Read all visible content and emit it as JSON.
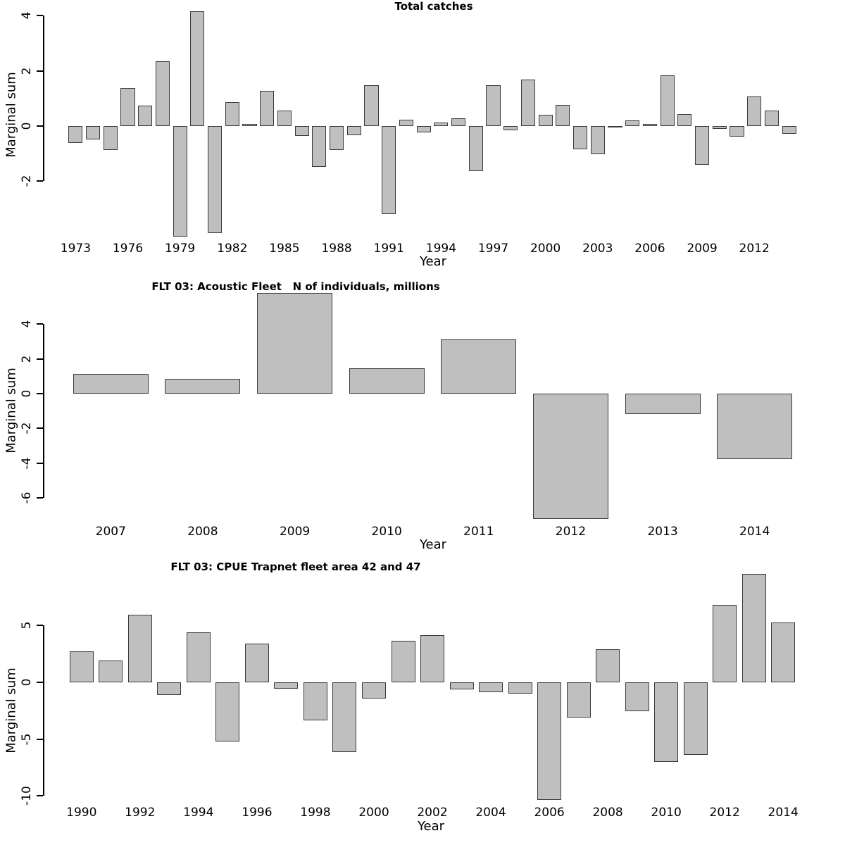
{
  "figure_background": "#ffffff",
  "bar_fill_color": "#bfbfbf",
  "bar_border_color": "#3a3a3a",
  "axis_color": "#000000",
  "chart_data": [
    {
      "type": "bar",
      "title": "Total catches",
      "xlabel": "Year",
      "ylabel": "Marginal sum",
      "categories": [
        1973,
        1974,
        1975,
        1976,
        1977,
        1978,
        1979,
        1980,
        1981,
        1982,
        1983,
        1984,
        1985,
        1986,
        1987,
        1988,
        1989,
        1990,
        1991,
        1992,
        1993,
        1994,
        1995,
        1996,
        1997,
        1998,
        1999,
        2000,
        2001,
        2002,
        2003,
        2004,
        2005,
        2006,
        2007,
        2008,
        2009,
        2010,
        2011,
        2012,
        2013,
        2014
      ],
      "values": [
        -0.62,
        -0.49,
        -0.87,
        1.37,
        0.75,
        2.35,
        -4.0,
        4.15,
        -3.87,
        0.86,
        0.08,
        1.28,
        0.55,
        -0.36,
        -1.48,
        -0.87,
        -0.32,
        1.49,
        -3.2,
        0.23,
        -0.24,
        0.13,
        0.27,
        -1.63,
        1.49,
        -0.15,
        1.68,
        0.4,
        0.76,
        -0.84,
        -1.01,
        -0.05,
        0.21,
        0.08,
        1.83,
        0.44,
        -1.4,
        -0.11,
        -0.38,
        1.06,
        0.56,
        -0.28
      ],
      "xtick_labels": [
        1973,
        1976,
        1979,
        1982,
        1985,
        1988,
        1991,
        1994,
        1997,
        2000,
        2003,
        2006,
        2009,
        2012
      ],
      "ytick_labels": [
        4,
        2,
        0,
        -2
      ],
      "ylim": [
        -4.2,
        4.2
      ],
      "grid": "off",
      "legend": "none"
    },
    {
      "type": "bar",
      "title": "FLT 03: Acoustic Fleet   N of individuals, millions",
      "xlabel": "Year",
      "ylabel": "Marginal sum",
      "categories": [
        2007,
        2008,
        2009,
        2010,
        2011,
        2012,
        2013,
        2014
      ],
      "values": [
        1.15,
        0.85,
        5.8,
        1.45,
        3.1,
        -7.2,
        -1.17,
        -3.78
      ],
      "xtick_labels": [
        2007,
        2008,
        2009,
        2010,
        2011,
        2012,
        2013,
        2014
      ],
      "ytick_labels": [
        4,
        2,
        0,
        -2,
        -4,
        -6
      ],
      "ylim": [
        -7.2,
        5.8
      ],
      "grid": "off",
      "legend": "none"
    },
    {
      "type": "bar",
      "title": "FLT 03: CPUE Trapnet fleet area 42 and 47",
      "xlabel": "Year",
      "ylabel": "Marginal sum",
      "categories": [
        1990,
        1991,
        1992,
        1993,
        1994,
        1995,
        1996,
        1997,
        1998,
        1999,
        2000,
        2001,
        2002,
        2003,
        2004,
        2005,
        2006,
        2007,
        2008,
        2009,
        2010,
        2011,
        2012,
        2013,
        2014
      ],
      "values": [
        2.7,
        1.9,
        5.95,
        -1.1,
        4.38,
        -5.2,
        3.38,
        -0.54,
        -3.37,
        -6.1,
        -1.45,
        3.65,
        4.18,
        -0.62,
        -0.88,
        -1.0,
        -10.35,
        -3.1,
        2.92,
        -2.54,
        -7.0,
        -6.36,
        6.8,
        9.55,
        5.27
      ],
      "xtick_labels": [
        1990,
        1992,
        1994,
        1996,
        1998,
        2000,
        2002,
        2004,
        2006,
        2008,
        2010,
        2012,
        2014
      ],
      "ytick_labels": [
        5,
        0,
        -5,
        -10
      ],
      "ylim": [
        -10.4,
        9.6
      ],
      "grid": "off",
      "legend": "none"
    }
  ]
}
